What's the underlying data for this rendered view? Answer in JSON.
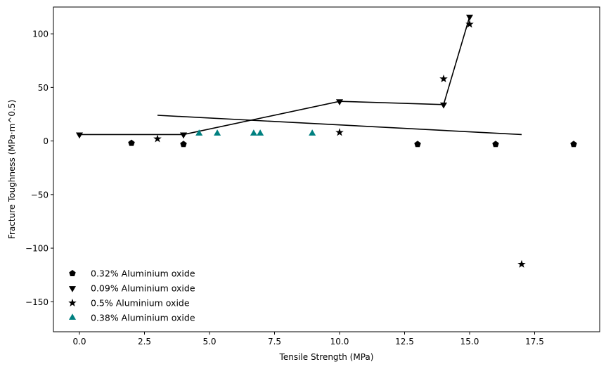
{
  "chart_data": {
    "type": "scatter",
    "xlabel": "Tensile Strength (MPa)",
    "ylabel": "Fracture Toughness (MPa·m^0.5)",
    "xlim": [
      -1.0,
      20.0
    ],
    "ylim": [
      -178,
      125
    ],
    "x_ticks": [
      0.0,
      2.5,
      5.0,
      7.5,
      10.0,
      12.5,
      15.0,
      17.5
    ],
    "x_tick_labels": [
      "0.0",
      "2.5",
      "5.0",
      "7.5",
      "10.0",
      "12.5",
      "15.0",
      "17.5"
    ],
    "y_ticks": [
      -150,
      -100,
      -50,
      0,
      50,
      100
    ],
    "y_tick_labels": [
      "−150",
      "−100",
      "−50",
      "0",
      "50",
      "100"
    ],
    "grid": false,
    "legend_position": "lower-left",
    "series": [
      {
        "name": "0.32% Aluminium oxide",
        "marker": "pentagon",
        "color": "#000000",
        "points": [
          [
            2,
            -2
          ],
          [
            4,
            -3
          ],
          [
            13,
            -3
          ],
          [
            16,
            -3
          ],
          [
            19,
            -3
          ]
        ]
      },
      {
        "name": "0.09% Aluminium oxide",
        "marker": "triangle-down",
        "color": "#000000",
        "points": [
          [
            0,
            6
          ],
          [
            4,
            6
          ],
          [
            10,
            37
          ],
          [
            14,
            34
          ],
          [
            15,
            116
          ]
        ]
      },
      {
        "name": "0.5% Aluminium oxide",
        "marker": "star",
        "color": "#000000",
        "points": [
          [
            3,
            2
          ],
          [
            10,
            8
          ],
          [
            14,
            58
          ],
          [
            15,
            109
          ],
          [
            17,
            -115
          ]
        ]
      },
      {
        "name": "0.38% Aluminium oxide",
        "marker": "triangle-up",
        "color": "#008080",
        "points": [
          [
            4.6,
            7
          ],
          [
            5.3,
            7
          ],
          [
            6.7,
            7
          ],
          [
            6.95,
            7
          ],
          [
            8.95,
            7
          ]
        ]
      }
    ],
    "lines": [
      {
        "points": [
          [
            0,
            6
          ],
          [
            4,
            6
          ],
          [
            10,
            37
          ],
          [
            14,
            34
          ],
          [
            15,
            116
          ]
        ],
        "color": "#000000"
      },
      {
        "points": [
          [
            3,
            24
          ],
          [
            17,
            6
          ]
        ],
        "color": "#000000"
      }
    ]
  }
}
